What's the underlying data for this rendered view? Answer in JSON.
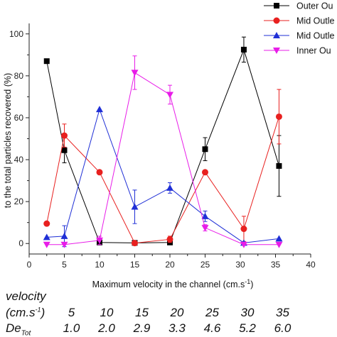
{
  "chart_data": {
    "type": "line",
    "xlabel": "Maximum velocity in the channel (cm.s-1)",
    "ylabel": "to the total particles recovered (%)",
    "xlim": [
      0,
      40
    ],
    "ylim": [
      -5,
      105
    ],
    "x_ticks": [
      0,
      5,
      10,
      15,
      20,
      25,
      30,
      35,
      40
    ],
    "y_ticks": [
      0,
      20,
      40,
      60,
      80,
      100
    ],
    "legend_position": "top-right",
    "series": [
      {
        "name": "Outer Ou",
        "color": "#000000",
        "marker": "square",
        "x": [
          2.5,
          5,
          10,
          15,
          20,
          25,
          30.5,
          35.5
        ],
        "y": [
          87,
          44.5,
          0.5,
          0.3,
          0.5,
          45,
          92.5,
          37
        ],
        "err": [
          0,
          6,
          0,
          0,
          0,
          5.5,
          6,
          14.5
        ]
      },
      {
        "name": "Mid Outle",
        "color": "#e8201f",
        "marker": "circle",
        "x": [
          2.5,
          5,
          10,
          15,
          20,
          25,
          30.5,
          35.5
        ],
        "y": [
          9.5,
          51.5,
          34,
          0.2,
          2,
          34,
          7,
          60.5
        ],
        "err": [
          0,
          5.5,
          0,
          0,
          1.5,
          0,
          6,
          13
        ]
      },
      {
        "name": "Mid Outle",
        "color": "#1f2fd6",
        "marker": "triangle-up",
        "x": [
          2.5,
          5,
          10,
          15,
          20,
          25,
          30.5,
          35.5
        ],
        "y": [
          3,
          3.5,
          64,
          17.5,
          26.5,
          13,
          0.3,
          2.3
        ],
        "err": [
          0,
          5,
          0,
          8,
          2.5,
          2.5,
          0,
          0
        ]
      },
      {
        "name": "Inner Ou",
        "color": "#e81ce8",
        "marker": "triangle-down",
        "x": [
          2.5,
          5,
          10,
          15,
          20,
          25,
          30.5,
          35.5
        ],
        "y": [
          -0.5,
          -0.5,
          1.5,
          81.5,
          71,
          7.5,
          -0.5,
          -0.5
        ],
        "err": [
          0,
          0,
          2,
          8,
          4.5,
          1.5,
          0,
          0
        ]
      }
    ]
  },
  "table": {
    "row1_label": "velocity",
    "row2_label_main": "(cm.s",
    "row2_label_sup": "-1",
    "row2_label_end": ")",
    "row3_label_main": "De",
    "row3_label_sub": "Tot",
    "velocities": [
      "5",
      "10",
      "15",
      "20",
      "25",
      "30",
      "35"
    ],
    "de_values": [
      "1.0",
      "2.0",
      "2.9",
      "3.3",
      "4.6",
      "5.2",
      "6.0"
    ]
  }
}
